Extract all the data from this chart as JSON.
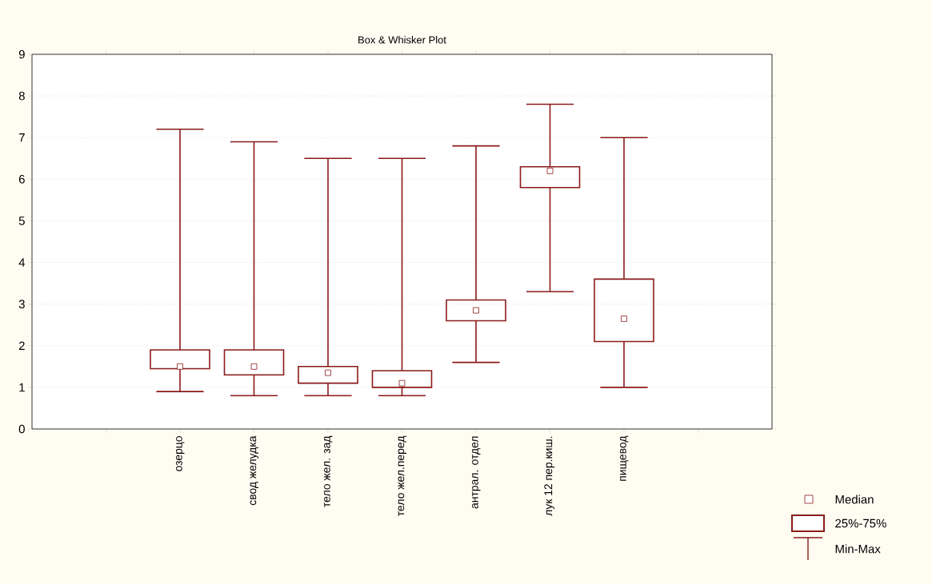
{
  "chart_data": {
    "type": "box",
    "title": "Box & Whisker Plot",
    "categories": [
      null,
      "озерцо",
      "свод желудка",
      "тело жел. зад",
      "тело жел.перед",
      "антрал. отдел",
      "лук 12 пер.киш.",
      "пищевод",
      null
    ],
    "series": [
      {
        "color": "#8b1a1a",
        "boxes": [
          null,
          {
            "low": 0.9,
            "q1": 1.45,
            "median": 1.5,
            "q3": 1.9,
            "high": 7.2
          },
          {
            "low": 0.8,
            "q1": 1.3,
            "median": 1.5,
            "q3": 1.9,
            "high": 6.9
          },
          {
            "low": 0.8,
            "q1": 1.1,
            "median": 1.35,
            "q3": 1.5,
            "high": 6.5
          },
          {
            "low": 0.8,
            "q1": 1.0,
            "median": 1.1,
            "q3": 1.4,
            "high": 6.5
          },
          {
            "low": 1.6,
            "q1": 2.6,
            "median": 2.85,
            "q3": 3.1,
            "high": 6.8
          },
          {
            "low": 3.3,
            "q1": 5.8,
            "median": 6.2,
            "q3": 6.3,
            "high": 7.8
          },
          {
            "low": 1.0,
            "q1": 2.1,
            "median": 2.65,
            "q3": 3.6,
            "high": 7.0
          },
          null
        ]
      }
    ],
    "ylim": [
      0,
      9
    ],
    "yticks": [
      0,
      1,
      2,
      3,
      4,
      5,
      6,
      7,
      8,
      9
    ],
    "grid": "y",
    "annotations": [
      "Median",
      "25%-75%",
      "Min-Max"
    ]
  }
}
